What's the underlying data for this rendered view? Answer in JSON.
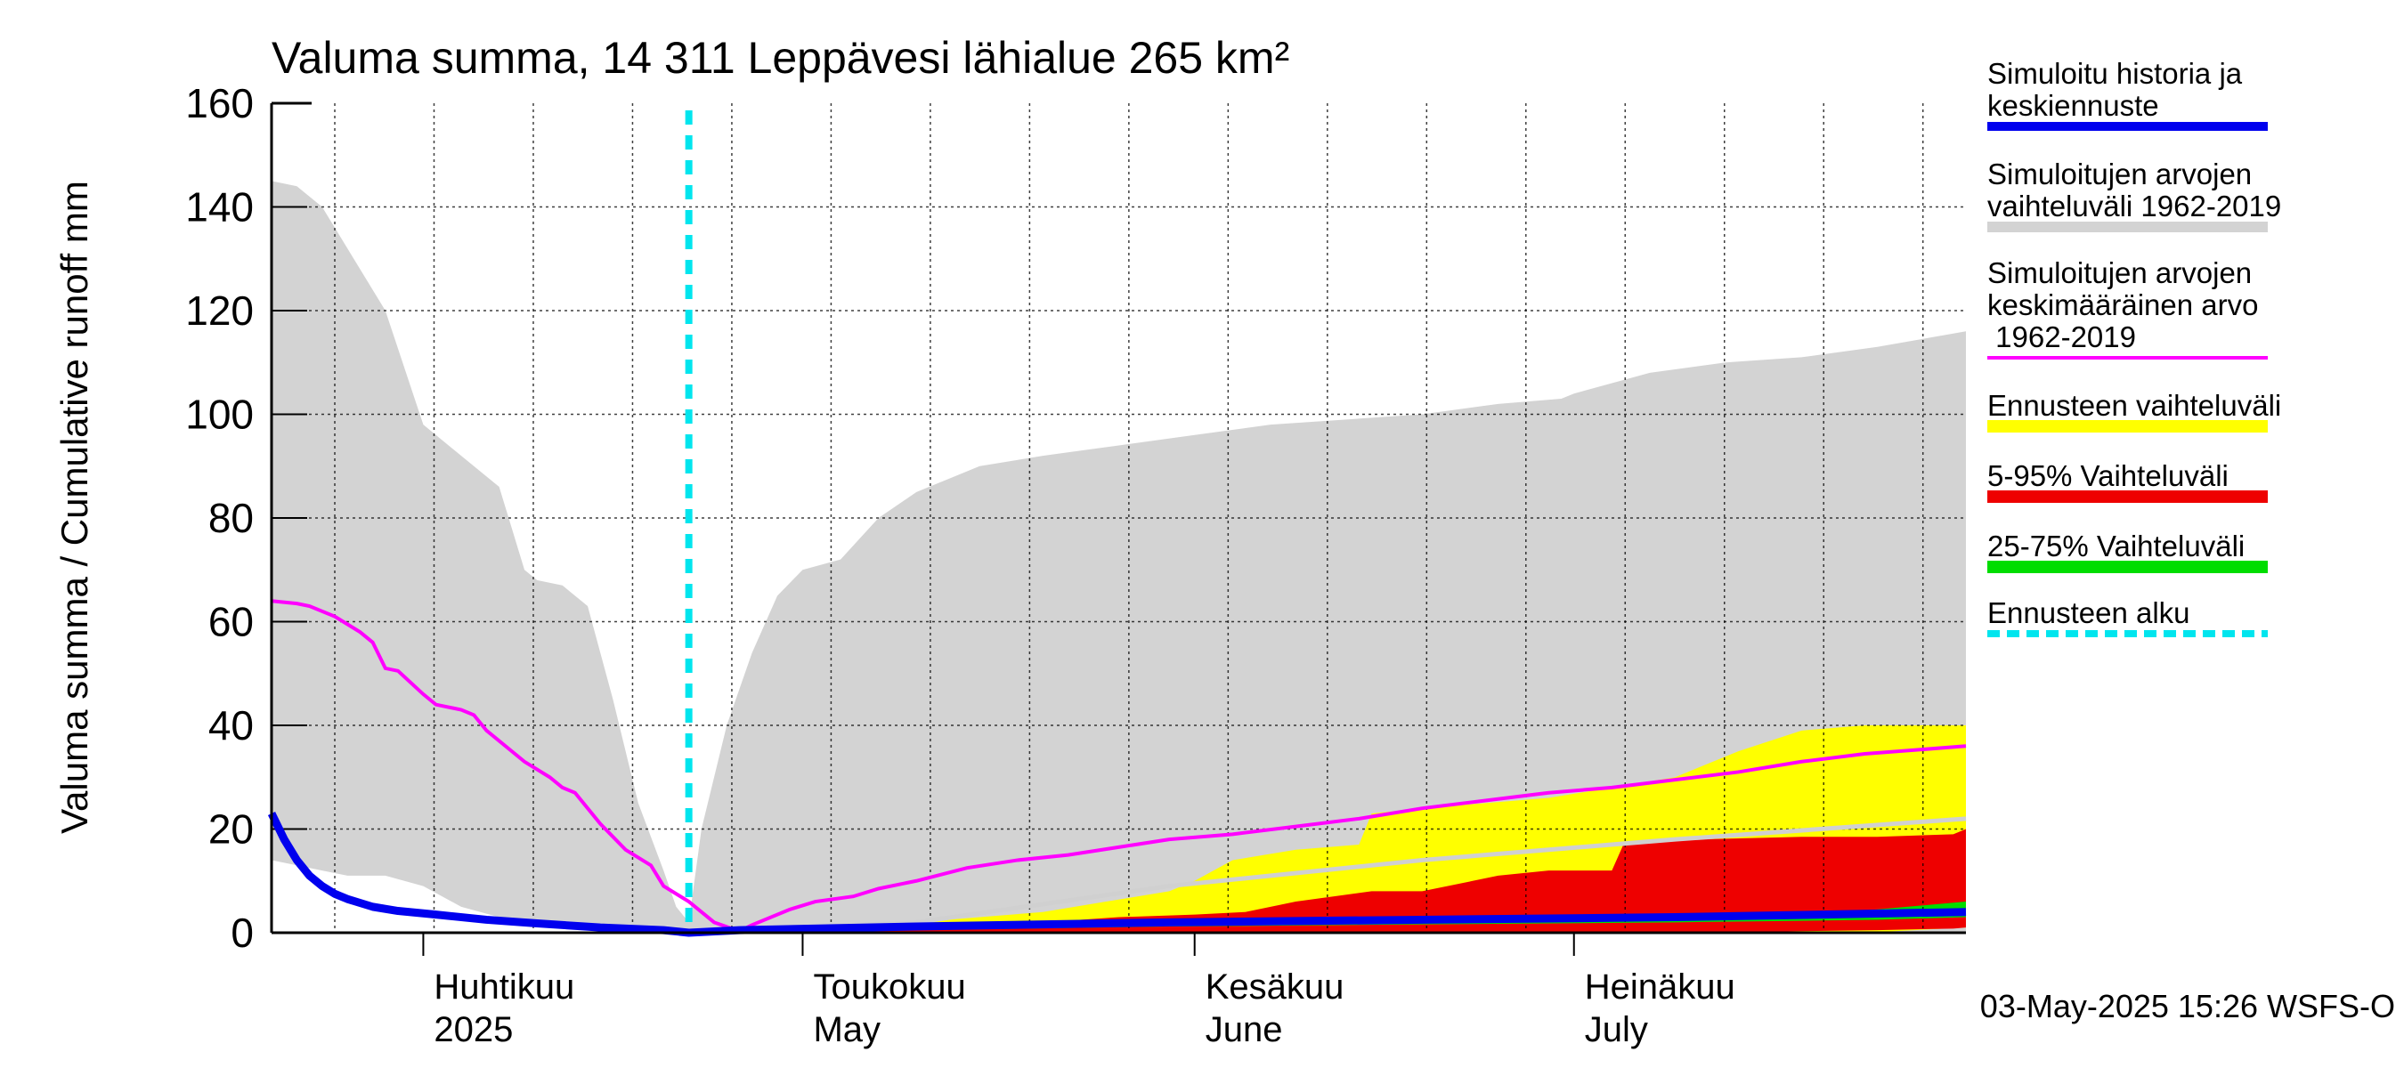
{
  "chart_data": {
    "type": "area",
    "title": "Valuma summa, 14 311 Leppävesi lähialue 265 km²",
    "ylabel": "Valuma summa / Cumulative runoff    mm",
    "ylim": [
      0,
      160
    ],
    "yticks": [
      0,
      20,
      40,
      60,
      80,
      100,
      120,
      140,
      160
    ],
    "x_unit": "day of year 2025",
    "xlim": [
      79,
      213
    ],
    "month_labels": [
      {
        "fi": "Huhtikuu",
        "en": "2025",
        "day": 91
      },
      {
        "fi": "Toukokuu",
        "en": "May",
        "day": 121
      },
      {
        "fi": "Kesäkuu",
        "en": "June",
        "day": 152
      },
      {
        "fi": "Heinäkuu",
        "en": "July",
        "day": 182
      }
    ],
    "forecast_start_day": 112,
    "legend": [
      {
        "label": "Simuloitu historia ja keskiennuste",
        "color": "#0000ee"
      },
      {
        "label": "Simuloitujen arvojen vaihteluväli 1962-2019",
        "color": "#d3d3d3"
      },
      {
        "label": "Simuloitujen arvojen keskimääräinen arvo 1962-2019",
        "color": "#ff00ff"
      },
      {
        "label": "Ennusteen vaihteluväli",
        "color": "#ffff00"
      },
      {
        "label": "5-95% Vaihteluväli",
        "color": "#ee0000"
      },
      {
        "label": "25-75% Vaihteluväli",
        "color": "#00dd00"
      },
      {
        "label": "Ennusteen alku",
        "color": "#00e5ee"
      }
    ],
    "series": {
      "hist_range": {
        "name": "Simuloitujen arvojen vaihteluväli 1962-2019",
        "x": [
          79,
          81,
          83,
          85,
          88,
          91,
          94,
          97,
          99,
          100,
          102,
          104,
          106,
          108,
          110,
          111,
          112,
          113,
          115,
          117,
          119,
          121,
          124,
          127,
          130,
          135,
          140,
          146,
          152,
          158,
          164,
          170,
          176,
          181,
          182,
          188,
          194,
          200,
          206,
          213
        ],
        "upper": [
          145,
          144,
          140,
          132,
          120,
          98,
          92,
          86,
          70,
          68,
          67,
          63,
          45,
          25,
          12,
          5,
          2,
          20,
          40,
          54,
          65,
          70,
          72,
          80,
          85,
          90,
          92,
          94,
          96,
          98,
          99,
          100,
          102,
          103,
          104,
          108,
          110,
          111,
          113,
          116
        ],
        "lower": [
          14,
          13,
          12,
          11,
          11,
          9,
          5,
          3,
          2,
          1.5,
          1,
          0.8,
          0.5,
          0.3,
          0.1,
          0,
          0,
          0,
          0,
          0,
          0,
          0,
          0,
          0,
          0,
          0,
          0,
          0,
          0,
          0,
          0,
          0,
          0,
          0,
          0,
          0,
          0,
          0,
          0,
          0
        ]
      },
      "mean": {
        "name": "Simuloitujen arvojen keskimääräinen arvo 1962-2019",
        "x": [
          79,
          81,
          82,
          84,
          86,
          87,
          88,
          89,
          91,
          92,
          94,
          95,
          96,
          98,
          99,
          101,
          102,
          103,
          105,
          107,
          109,
          110,
          112,
          114,
          116,
          117,
          120,
          122,
          125,
          127,
          130,
          134,
          138,
          142,
          146,
          150,
          155,
          160,
          165,
          170,
          175,
          180,
          185,
          190,
          195,
          200,
          205,
          213
        ],
        "y": [
          64,
          63.5,
          63,
          61,
          58,
          56,
          51,
          50.5,
          46,
          44,
          43,
          42,
          39,
          35,
          33,
          30,
          28,
          27,
          21,
          16,
          13,
          9,
          6,
          2,
          0.3,
          1.5,
          4.5,
          6,
          7,
          8.5,
          10,
          12.5,
          14,
          15,
          16.5,
          18,
          19,
          20.5,
          22,
          24,
          25.5,
          27,
          28,
          29.5,
          31,
          33,
          34.5,
          36
        ]
      },
      "forecast_range": {
        "name": "Ennusteen vaihteluväli",
        "x": [
          112,
          115,
          120,
          125,
          130,
          135,
          140,
          145,
          150,
          152,
          155,
          160,
          165,
          166,
          170,
          175,
          180,
          185,
          190,
          195,
          200,
          205,
          213
        ],
        "upper": [
          0,
          0.5,
          1,
          1.5,
          2,
          3,
          4,
          6,
          8,
          10,
          14,
          16,
          17,
          23,
          24,
          25,
          26,
          28,
          30,
          35,
          39,
          40,
          40
        ],
        "lower": [
          0,
          0,
          0,
          0,
          0,
          0,
          0,
          0,
          0,
          0,
          0,
          0,
          0,
          0,
          0,
          0,
          0,
          0,
          0,
          0,
          0,
          0,
          1
        ]
      },
      "p5_95": {
        "name": "5-95% Vaihteluväli",
        "x": [
          112,
          120,
          130,
          140,
          146,
          152,
          156,
          160,
          166,
          170,
          176,
          180,
          185,
          186,
          192,
          200,
          206,
          212,
          213
        ],
        "upper": [
          0,
          0.8,
          1.2,
          2,
          3,
          3.5,
          4,
          6,
          8,
          8,
          11,
          12,
          12,
          17.5,
          18,
          18.5,
          18.5,
          19,
          20
        ],
        "lower": [
          0,
          0,
          0,
          0,
          0,
          0,
          0,
          0,
          0,
          0,
          0,
          0,
          0,
          0,
          0,
          0.3,
          0.5,
          0.8,
          1
        ]
      },
      "p25_75": {
        "name": "25-75% Vaihteluväli",
        "x": [
          112,
          130,
          150,
          170,
          190,
          200,
          206,
          213
        ],
        "upper": [
          0,
          1,
          2,
          2.5,
          3,
          3.5,
          4.5,
          6
        ],
        "lower": [
          0,
          0.5,
          1.2,
          1.6,
          2,
          2.3,
          2.5,
          3
        ]
      },
      "median_gray": {
        "name": "median",
        "x": [
          112,
          130,
          150,
          170,
          190,
          213
        ],
        "y": [
          0,
          2,
          9,
          14,
          18,
          22
        ]
      },
      "sim_history": {
        "name": "Simuloitu historia ja keskiennuste",
        "x": [
          79,
          80,
          81,
          82,
          83,
          84,
          85,
          87,
          89,
          92,
          96,
          100,
          105,
          110,
          112,
          116,
          130,
          150,
          170,
          190,
          213
        ],
        "y": [
          23,
          18,
          14,
          11,
          9,
          7.5,
          6.5,
          5,
          4.2,
          3.5,
          2.5,
          1.8,
          1,
          0.5,
          0,
          0.5,
          1.2,
          2,
          2.5,
          3,
          4
        ]
      }
    },
    "footer": "03-May-2025 15:26 WSFS-O"
  }
}
